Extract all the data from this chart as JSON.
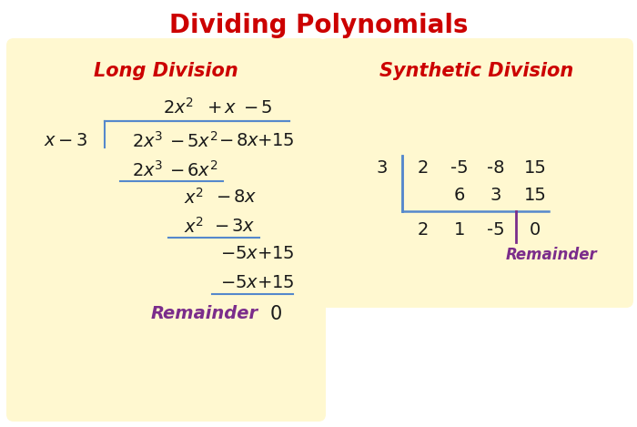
{
  "title": "Dividing Polynomials",
  "title_color": "#CC0000",
  "title_fontsize": 20,
  "panel_bg": "#FFF8D0",
  "left_panel_title": "Long Division",
  "right_panel_title": "Synthetic Division",
  "panel_title_color": "#CC0000",
  "panel_title_fontsize": 15,
  "math_color": "#1a1a1a",
  "blue_color": "#5588CC",
  "purple_color": "#7B2D8B",
  "figure_bg": "#FFFFFF",
  "fs_math": 14,
  "fs_syn": 14
}
